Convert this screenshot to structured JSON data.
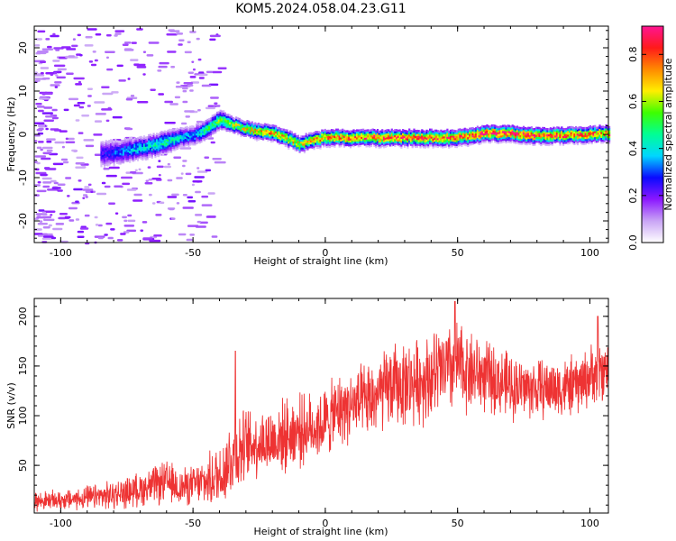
{
  "chart_data": [
    {
      "type": "heatmap",
      "title": "KOM5.2024.058.04.23.G11",
      "xlabel": "Height of straight line (km)",
      "ylabel": "Frequency (Hz)",
      "xlim": [
        -110,
        107
      ],
      "ylim": [
        -25,
        25
      ],
      "xticks": [
        -100,
        -50,
        0,
        50,
        100
      ],
      "yticks": [
        -20,
        -10,
        0,
        10,
        20
      ],
      "colorbar": {
        "label": "Normalized spectral amplitude",
        "range": [
          0.0,
          0.92
        ],
        "ticks": [
          0.0,
          0.2,
          0.4,
          0.6,
          0.8
        ],
        "colors": [
          "#ffffff",
          "#c9a4f5",
          "#8b17ff",
          "#0a0aff",
          "#00d6ff",
          "#00ff95",
          "#3dff00",
          "#ffee00",
          "#ff8a00",
          "#ff1a1a",
          "#ff1493"
        ]
      },
      "ridge": {
        "x": [
          -110,
          -90,
          -80,
          -70,
          -60,
          -55,
          -50,
          -45,
          -40,
          -35,
          -30,
          -25,
          -20,
          -15,
          -10,
          -5,
          0,
          10,
          20,
          30,
          40,
          50,
          55,
          60,
          70,
          80,
          90,
          100,
          107
        ],
        "freq": [
          -5,
          -4.5,
          -4,
          -3,
          -1.5,
          -0.5,
          0,
          1.5,
          3.5,
          2.5,
          1.5,
          1,
          0.5,
          -0.5,
          -2,
          -1,
          -0.5,
          -0.5,
          -0.5,
          -0.5,
          -0.5,
          -0.5,
          0,
          0.5,
          0.5,
          0,
          0,
          0.3,
          0.5
        ],
        "amplitude": [
          0.1,
          0.2,
          0.3,
          0.4,
          0.45,
          0.4,
          0.35,
          0.5,
          0.55,
          0.6,
          0.65,
          0.7,
          0.72,
          0.7,
          0.65,
          0.7,
          0.75,
          0.78,
          0.8,
          0.8,
          0.82,
          0.82,
          0.8,
          0.85,
          0.85,
          0.82,
          0.8,
          0.78,
          0.75
        ],
        "width_hz": [
          4,
          4,
          3.5,
          3,
          3,
          2.5,
          2.5,
          2.5,
          2.5,
          2,
          2,
          2,
          2,
          2,
          2,
          2,
          2,
          2,
          2,
          2,
          2,
          2,
          2,
          2,
          2,
          2,
          2,
          2,
          2
        ]
      },
      "grid": false
    },
    {
      "type": "line",
      "xlabel": "Height of straight line (km)",
      "ylabel": "SNR (v/v)",
      "xlim": [
        -110,
        107
      ],
      "ylim": [
        2,
        218
      ],
      "xticks": [
        -100,
        -50,
        0,
        50,
        100
      ],
      "yticks": [
        50,
        100,
        150,
        200
      ],
      "color": "#ee3333",
      "series": [
        {
          "x": [
            -110,
            -100,
            -90,
            -80,
            -70,
            -60,
            -55,
            -50,
            -45,
            -40,
            -35,
            -30,
            -25,
            -20,
            -15,
            -10,
            -5,
            0,
            5,
            10,
            15,
            20,
            25,
            30,
            35,
            40,
            45,
            50,
            55,
            60,
            65,
            70,
            75,
            80,
            85,
            90,
            95,
            100,
            105,
            107
          ],
          "mean": [
            14,
            15,
            17,
            20,
            26,
            33,
            28,
            30,
            33,
            40,
            60,
            70,
            73,
            75,
            80,
            85,
            88,
            93,
            105,
            110,
            112,
            120,
            130,
            132,
            135,
            140,
            145,
            150,
            145,
            140,
            135,
            130,
            128,
            127,
            128,
            128,
            130,
            140,
            145,
            148
          ],
          "noise": [
            8,
            8,
            10,
            12,
            14,
            18,
            16,
            16,
            20,
            28,
            35,
            30,
            28,
            30,
            30,
            30,
            28,
            30,
            30,
            30,
            32,
            33,
            35,
            35,
            35,
            38,
            38,
            38,
            35,
            30,
            28,
            28,
            25,
            25,
            25,
            25,
            25,
            25,
            25,
            25
          ]
        }
      ],
      "peaks": [
        {
          "x": -34,
          "y": 165
        },
        {
          "x": 49,
          "y": 215
        },
        {
          "x": 103,
          "y": 200
        }
      ],
      "grid": false
    }
  ]
}
